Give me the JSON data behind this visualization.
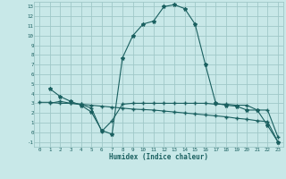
{
  "xlabel": "Humidex (Indice chaleur)",
  "bg_color": "#c8e8e8",
  "grid_color": "#a0c8c8",
  "line_color": "#1a6060",
  "xlim": [
    -0.5,
    23.5
  ],
  "ylim": [
    -1.5,
    13.5
  ],
  "xticks": [
    0,
    1,
    2,
    3,
    4,
    5,
    6,
    7,
    8,
    9,
    10,
    11,
    12,
    13,
    14,
    15,
    16,
    17,
    18,
    19,
    20,
    21,
    22,
    23
  ],
  "yticks": [
    -1,
    0,
    1,
    2,
    3,
    4,
    5,
    6,
    7,
    8,
    9,
    10,
    11,
    12,
    13
  ],
  "line1_x": [
    1,
    2,
    3,
    4,
    5,
    6,
    7,
    8,
    9,
    10,
    11,
    12,
    13,
    14,
    15,
    16,
    17,
    18,
    19,
    20,
    21,
    22,
    23
  ],
  "line1_y": [
    4.5,
    3.7,
    3.2,
    2.8,
    2.1,
    0.2,
    -0.2,
    7.7,
    10.0,
    11.2,
    11.5,
    13.0,
    13.2,
    12.8,
    11.2,
    7.0,
    3.0,
    2.8,
    2.7,
    2.3,
    2.3,
    0.7,
    -1.0
  ],
  "line2_x": [
    0,
    1,
    2,
    3,
    4,
    5,
    6,
    7,
    8,
    9,
    10,
    11,
    12,
    13,
    14,
    15,
    16,
    17,
    18,
    19,
    20,
    21,
    22,
    23
  ],
  "line2_y": [
    3.1,
    3.1,
    3.0,
    3.0,
    2.9,
    2.8,
    2.7,
    2.6,
    2.5,
    2.4,
    2.35,
    2.3,
    2.2,
    2.1,
    2.0,
    1.9,
    1.8,
    1.7,
    1.6,
    1.45,
    1.35,
    1.2,
    1.1,
    -1.0
  ],
  "line3_x": [
    1,
    2,
    3,
    4,
    5,
    6,
    7,
    8,
    9,
    10,
    11,
    12,
    13,
    14,
    15,
    16,
    17,
    18,
    19,
    20,
    21,
    22,
    23
  ],
  "line3_y": [
    3.0,
    3.2,
    3.0,
    2.9,
    2.5,
    0.1,
    1.2,
    2.9,
    3.0,
    3.0,
    3.0,
    3.0,
    3.0,
    3.0,
    3.0,
    3.0,
    2.9,
    2.9,
    2.8,
    2.8,
    2.3,
    2.3,
    -0.5
  ]
}
